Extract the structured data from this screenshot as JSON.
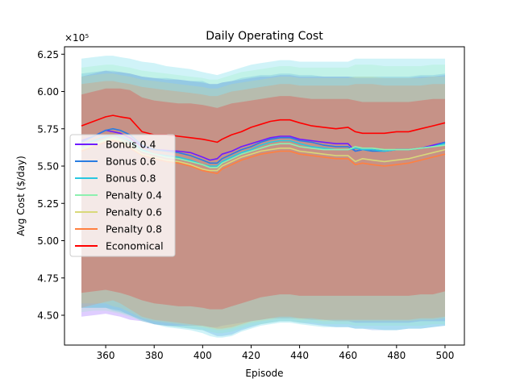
{
  "chart_data": {
    "type": "line",
    "title": "Daily Operating Cost",
    "xlabel": "Episode",
    "ylabel": "Avg Cost ($/day)",
    "y_multiplier_label": "×10⁵",
    "xlim": [
      343,
      508
    ],
    "ylim": [
      4.3,
      6.3
    ],
    "xticks": [
      360,
      380,
      400,
      420,
      440,
      460,
      480,
      500
    ],
    "yticks": [
      4.5,
      4.75,
      5.0,
      5.25,
      5.5,
      5.75,
      6.0,
      6.25
    ],
    "legend_position": "center-left",
    "series": [
      {
        "name": "Bonus 0.4",
        "color": "#6f1cff",
        "x": [
          350,
          355,
          360,
          363,
          366,
          370,
          375,
          380,
          385,
          390,
          395,
          400,
          403,
          406,
          408,
          412,
          416,
          420,
          424,
          428,
          432,
          436,
          440,
          445,
          450,
          455,
          460,
          463,
          466,
          470,
          475,
          480,
          485,
          490,
          495,
          500
        ],
        "mean": [
          5.67,
          5.7,
          5.74,
          5.73,
          5.72,
          5.69,
          5.63,
          5.61,
          5.605,
          5.6,
          5.59,
          5.56,
          5.54,
          5.55,
          5.58,
          5.6,
          5.63,
          5.65,
          5.67,
          5.69,
          5.7,
          5.7,
          5.68,
          5.67,
          5.66,
          5.65,
          5.65,
          5.6,
          5.61,
          5.61,
          5.6,
          5.61,
          5.61,
          5.62,
          5.64,
          5.66
        ],
        "lower": [
          4.49,
          4.5,
          4.51,
          4.5,
          4.49,
          4.47,
          4.46,
          4.44,
          4.43,
          4.43,
          4.43,
          4.43,
          4.42,
          4.42,
          4.43,
          4.44,
          4.45,
          4.46,
          4.47,
          4.48,
          4.48,
          4.48,
          4.48,
          4.47,
          4.47,
          4.46,
          4.46,
          4.45,
          4.45,
          4.45,
          4.45,
          4.45,
          4.45,
          4.46,
          4.46,
          4.46
        ],
        "upper": [
          6.1,
          6.12,
          6.14,
          6.13,
          6.13,
          6.12,
          6.1,
          6.09,
          6.08,
          6.08,
          6.07,
          6.06,
          6.05,
          6.05,
          6.06,
          6.07,
          6.08,
          6.09,
          6.1,
          6.1,
          6.11,
          6.11,
          6.1,
          6.1,
          6.1,
          6.1,
          6.1,
          6.09,
          6.09,
          6.09,
          6.09,
          6.09,
          6.09,
          6.1,
          6.1,
          6.11
        ]
      },
      {
        "name": "Bonus 0.6",
        "color": "#2a7de1",
        "x": [
          350,
          355,
          360,
          363,
          366,
          370,
          375,
          380,
          385,
          390,
          395,
          400,
          403,
          406,
          408,
          412,
          416,
          420,
          424,
          428,
          432,
          436,
          440,
          445,
          450,
          455,
          460,
          463,
          466,
          470,
          475,
          480,
          485,
          490,
          495,
          500
        ],
        "mean": [
          5.66,
          5.7,
          5.74,
          5.75,
          5.74,
          5.71,
          5.64,
          5.61,
          5.6,
          5.59,
          5.57,
          5.54,
          5.52,
          5.52,
          5.55,
          5.58,
          5.61,
          5.63,
          5.66,
          5.68,
          5.69,
          5.69,
          5.67,
          5.66,
          5.64,
          5.63,
          5.63,
          5.6,
          5.61,
          5.6,
          5.6,
          5.61,
          5.61,
          5.62,
          5.63,
          5.66
        ],
        "lower": [
          4.55,
          4.55,
          4.55,
          4.54,
          4.53,
          4.5,
          4.47,
          4.44,
          4.43,
          4.42,
          4.41,
          4.4,
          4.38,
          4.36,
          4.36,
          4.37,
          4.4,
          4.42,
          4.44,
          4.45,
          4.46,
          4.46,
          4.45,
          4.44,
          4.43,
          4.42,
          4.42,
          4.41,
          4.41,
          4.4,
          4.4,
          4.4,
          4.41,
          4.41,
          4.42,
          4.43
        ],
        "upper": [
          6.12,
          6.13,
          6.14,
          6.14,
          6.13,
          6.12,
          6.1,
          6.09,
          6.09,
          6.08,
          6.07,
          6.07,
          6.05,
          6.05,
          6.06,
          6.07,
          6.09,
          6.1,
          6.11,
          6.11,
          6.12,
          6.12,
          6.11,
          6.11,
          6.1,
          6.1,
          6.1,
          6.1,
          6.1,
          6.1,
          6.1,
          6.1,
          6.1,
          6.11,
          6.11,
          6.12
        ]
      },
      {
        "name": "Bonus 0.8",
        "color": "#29c7e0",
        "x": [
          350,
          355,
          360,
          363,
          366,
          370,
          375,
          380,
          385,
          390,
          395,
          400,
          403,
          406,
          408,
          412,
          416,
          420,
          424,
          428,
          432,
          436,
          440,
          445,
          450,
          455,
          460,
          463,
          466,
          470,
          475,
          480,
          485,
          490,
          495,
          500
        ],
        "mean": [
          5.64,
          5.67,
          5.7,
          5.71,
          5.7,
          5.67,
          5.61,
          5.58,
          5.57,
          5.56,
          5.54,
          5.51,
          5.5,
          5.5,
          5.53,
          5.56,
          5.59,
          5.61,
          5.64,
          5.66,
          5.67,
          5.67,
          5.65,
          5.63,
          5.62,
          5.61,
          5.61,
          5.62,
          5.61,
          5.61,
          5.6,
          5.61,
          5.61,
          5.62,
          5.63,
          5.65
        ],
        "lower": [
          4.55,
          4.55,
          4.55,
          4.53,
          4.52,
          4.5,
          4.46,
          4.44,
          4.42,
          4.41,
          4.4,
          4.38,
          4.36,
          4.35,
          4.35,
          4.36,
          4.39,
          4.41,
          4.43,
          4.44,
          4.45,
          4.45,
          4.44,
          4.43,
          4.42,
          4.42,
          4.42,
          4.41,
          4.41,
          4.41,
          4.4,
          4.4,
          4.41,
          4.41,
          4.42,
          4.43
        ],
        "upper": [
          6.22,
          6.23,
          6.24,
          6.24,
          6.23,
          6.22,
          6.2,
          6.19,
          6.17,
          6.16,
          6.15,
          6.13,
          6.12,
          6.11,
          6.12,
          6.14,
          6.16,
          6.18,
          6.19,
          6.2,
          6.21,
          6.21,
          6.2,
          6.2,
          6.2,
          6.2,
          6.2,
          6.22,
          6.22,
          6.22,
          6.22,
          6.22,
          6.22,
          6.22,
          6.22,
          6.22
        ]
      },
      {
        "name": "Penalty 0.4",
        "color": "#8df0b0",
        "x": [
          350,
          355,
          360,
          363,
          366,
          370,
          375,
          380,
          385,
          390,
          395,
          400,
          403,
          406,
          408,
          412,
          416,
          420,
          424,
          428,
          432,
          436,
          440,
          445,
          450,
          455,
          460,
          463,
          466,
          470,
          475,
          480,
          485,
          490,
          495,
          500
        ],
        "mean": [
          5.62,
          5.65,
          5.68,
          5.69,
          5.68,
          5.65,
          5.6,
          5.58,
          5.56,
          5.55,
          5.53,
          5.51,
          5.49,
          5.49,
          5.52,
          5.55,
          5.58,
          5.6,
          5.62,
          5.64,
          5.65,
          5.65,
          5.63,
          5.62,
          5.61,
          5.61,
          5.61,
          5.63,
          5.62,
          5.62,
          5.61,
          5.61,
          5.61,
          5.62,
          5.63,
          5.64
        ],
        "lower": [
          4.52,
          4.53,
          4.53,
          4.52,
          4.51,
          4.49,
          4.46,
          4.44,
          4.43,
          4.42,
          4.41,
          4.4,
          4.39,
          4.38,
          4.38,
          4.39,
          4.41,
          4.43,
          4.44,
          4.45,
          4.46,
          4.46,
          4.45,
          4.45,
          4.44,
          4.44,
          4.44,
          4.43,
          4.43,
          4.43,
          4.43,
          4.43,
          4.43,
          4.43,
          4.44,
          4.44
        ],
        "upper": [
          6.16,
          6.17,
          6.18,
          6.18,
          6.17,
          6.16,
          6.14,
          6.13,
          6.12,
          6.11,
          6.1,
          6.09,
          6.08,
          6.08,
          6.09,
          6.11,
          6.13,
          6.14,
          6.15,
          6.16,
          6.17,
          6.17,
          6.16,
          6.16,
          6.16,
          6.16,
          6.16,
          6.18,
          6.18,
          6.18,
          6.17,
          6.17,
          6.17,
          6.17,
          6.18,
          6.18
        ]
      },
      {
        "name": "Penalty 0.6",
        "color": "#d9d97a",
        "x": [
          350,
          355,
          360,
          363,
          366,
          370,
          375,
          380,
          385,
          390,
          395,
          400,
          403,
          406,
          408,
          412,
          416,
          420,
          424,
          428,
          432,
          436,
          440,
          445,
          450,
          455,
          460,
          463,
          466,
          470,
          475,
          480,
          485,
          490,
          495,
          500
        ],
        "mean": [
          5.61,
          5.64,
          5.67,
          5.68,
          5.67,
          5.63,
          5.58,
          5.56,
          5.54,
          5.53,
          5.51,
          5.48,
          5.47,
          5.47,
          5.5,
          5.53,
          5.56,
          5.58,
          5.6,
          5.61,
          5.62,
          5.62,
          5.6,
          5.59,
          5.58,
          5.57,
          5.57,
          5.53,
          5.55,
          5.54,
          5.53,
          5.54,
          5.55,
          5.57,
          5.59,
          5.61
        ],
        "lower": [
          4.58,
          4.58,
          4.58,
          4.56,
          4.55,
          4.52,
          4.48,
          4.46,
          4.45,
          4.44,
          4.43,
          4.42,
          4.41,
          4.4,
          4.4,
          4.41,
          4.43,
          4.45,
          4.46,
          4.47,
          4.48,
          4.48,
          4.47,
          4.47,
          4.46,
          4.46,
          4.46,
          4.46,
          4.46,
          4.46,
          4.46,
          4.46,
          4.46,
          4.47,
          4.47,
          4.48
        ],
        "upper": [
          6.1,
          6.11,
          6.12,
          6.12,
          6.11,
          6.1,
          6.08,
          6.07,
          6.06,
          6.05,
          6.04,
          6.03,
          6.02,
          6.02,
          6.03,
          6.05,
          6.06,
          6.07,
          6.08,
          6.09,
          6.1,
          6.1,
          6.09,
          6.09,
          6.09,
          6.09,
          6.09,
          6.1,
          6.1,
          6.1,
          6.09,
          6.09,
          6.09,
          6.09,
          6.1,
          6.1
        ]
      },
      {
        "name": "Penalty 0.8",
        "color": "#ff8040",
        "x": [
          350,
          355,
          360,
          363,
          366,
          370,
          375,
          380,
          385,
          390,
          395,
          400,
          403,
          406,
          408,
          412,
          416,
          420,
          424,
          428,
          432,
          436,
          440,
          445,
          450,
          455,
          460,
          463,
          466,
          470,
          475,
          480,
          485,
          490,
          495,
          500
        ],
        "mean": [
          5.6,
          5.63,
          5.66,
          5.67,
          5.66,
          5.62,
          5.57,
          5.55,
          5.53,
          5.52,
          5.5,
          5.47,
          5.46,
          5.45,
          5.48,
          5.51,
          5.54,
          5.56,
          5.58,
          5.59,
          5.6,
          5.6,
          5.58,
          5.57,
          5.56,
          5.55,
          5.55,
          5.51,
          5.52,
          5.51,
          5.5,
          5.51,
          5.52,
          5.54,
          5.56,
          5.58
        ],
        "lower": [
          4.55,
          4.57,
          4.59,
          4.6,
          4.58,
          4.54,
          4.49,
          4.47,
          4.46,
          4.45,
          4.44,
          4.43,
          4.42,
          4.41,
          4.41,
          4.42,
          4.44,
          4.46,
          4.47,
          4.48,
          4.49,
          4.49,
          4.48,
          4.48,
          4.47,
          4.47,
          4.47,
          4.47,
          4.47,
          4.47,
          4.47,
          4.47,
          4.47,
          4.48,
          4.48,
          4.49
        ],
        "upper": [
          6.05,
          6.06,
          6.07,
          6.07,
          6.06,
          6.05,
          6.03,
          6.02,
          6.01,
          6.0,
          5.99,
          5.98,
          5.97,
          5.97,
          5.98,
          6.0,
          6.01,
          6.02,
          6.03,
          6.04,
          6.05,
          6.05,
          6.04,
          6.04,
          6.04,
          6.04,
          6.04,
          6.05,
          6.05,
          6.05,
          6.04,
          6.04,
          6.04,
          6.04,
          6.05,
          6.05
        ]
      },
      {
        "name": "Economical",
        "color": "#ff0000",
        "x": [
          350,
          355,
          360,
          363,
          366,
          370,
          375,
          380,
          385,
          390,
          395,
          400,
          403,
          406,
          408,
          412,
          416,
          420,
          424,
          428,
          432,
          436,
          440,
          445,
          450,
          455,
          460,
          463,
          466,
          470,
          475,
          480,
          485,
          490,
          495,
          500
        ],
        "mean": [
          5.77,
          5.8,
          5.83,
          5.84,
          5.83,
          5.82,
          5.73,
          5.71,
          5.71,
          5.7,
          5.69,
          5.68,
          5.67,
          5.66,
          5.68,
          5.71,
          5.73,
          5.76,
          5.78,
          5.8,
          5.81,
          5.81,
          5.79,
          5.77,
          5.76,
          5.75,
          5.76,
          5.73,
          5.72,
          5.72,
          5.72,
          5.73,
          5.73,
          5.75,
          5.77,
          5.79
        ],
        "lower": [
          4.65,
          4.66,
          4.67,
          4.66,
          4.65,
          4.63,
          4.6,
          4.58,
          4.57,
          4.56,
          4.56,
          4.55,
          4.54,
          4.54,
          4.54,
          4.56,
          4.58,
          4.6,
          4.62,
          4.63,
          4.64,
          4.64,
          4.63,
          4.63,
          4.63,
          4.63,
          4.63,
          4.63,
          4.63,
          4.63,
          4.63,
          4.63,
          4.63,
          4.64,
          4.64,
          4.66
        ],
        "upper": [
          5.98,
          6.0,
          6.02,
          6.02,
          6.02,
          6.01,
          5.96,
          5.94,
          5.93,
          5.92,
          5.92,
          5.91,
          5.9,
          5.89,
          5.9,
          5.92,
          5.93,
          5.94,
          5.95,
          5.96,
          5.97,
          5.97,
          5.96,
          5.95,
          5.95,
          5.95,
          5.95,
          5.94,
          5.93,
          5.93,
          5.93,
          5.93,
          5.93,
          5.94,
          5.95,
          5.95
        ]
      }
    ]
  }
}
